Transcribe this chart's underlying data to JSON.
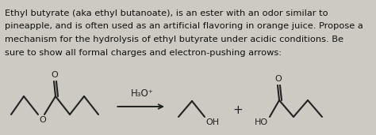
{
  "background_color": "#cccac2",
  "text_lines": [
    "Ethyl butyrate (aka ethyl butanoate), is an ester with an odor similar to",
    "pineapple, and is often used as an artificial flavoring in orange juice. Propose a",
    "mechanism for the hydrolysis of ethyl butyrate under acidic conditions. Be",
    "sure to show all formal charges and electron-pushing arrows:"
  ],
  "text_fontsize": 8.2,
  "text_color": "#111111",
  "reagent": "H₃O⁺",
  "plus_sign": "+",
  "line_color": "#222222",
  "line_width": 1.5
}
